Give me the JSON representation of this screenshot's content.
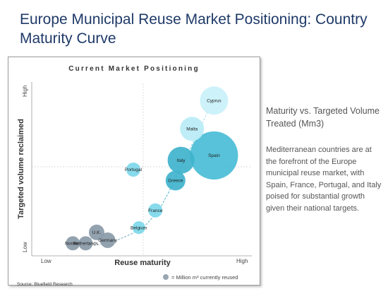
{
  "page": {
    "title": "Europe Municipal Reuse Market Positioning: Country Maturity Curve",
    "source": "Source: Bluefield Research"
  },
  "side_panel": {
    "heading": "Maturity vs. Targeted Volume Treated (Mm3)",
    "body": "Mediterranean countries are at the forefront of the Europe municipal reuse market, with Spain, France, Portugal, and Italy poised for substantial growth given their national targets."
  },
  "chart_data": {
    "type": "scatter",
    "title": "Current Market Positioning",
    "xlabel": "Reuse maturity",
    "ylabel": "Targeted volume reclaimed",
    "x_ticks": [
      "Low",
      "High"
    ],
    "y_ticks": [
      "Low",
      "High"
    ],
    "xlim": [
      0,
      100
    ],
    "ylim": [
      0,
      100
    ],
    "grid": false,
    "legend_text": "= Million m³ currently reused",
    "points": [
      {
        "label": "Nordics",
        "x": 12,
        "y": 3,
        "size": 1.0,
        "color": "#8a9aa8"
      },
      {
        "label": "Netherlands",
        "x": 19,
        "y": 3,
        "size": 1.0,
        "color": "#8a9aa8"
      },
      {
        "label": "U.K.",
        "x": 25,
        "y": 10,
        "size": 1.1,
        "color": "#8a9aa8"
      },
      {
        "label": "Germany",
        "x": 31,
        "y": 5,
        "size": 1.1,
        "color": "#8a9aa8"
      },
      {
        "label": "Belgium",
        "x": 48,
        "y": 13,
        "size": 0.9,
        "color": "#7dd8ea"
      },
      {
        "label": "France",
        "x": 57,
        "y": 24,
        "size": 1.0,
        "color": "#7dd8ea"
      },
      {
        "label": "Portugal",
        "x": 45,
        "y": 50,
        "size": 1.0,
        "color": "#7dd8ea"
      },
      {
        "label": "Greece",
        "x": 68,
        "y": 43,
        "size": 1.4,
        "color": "#3fb3cc"
      },
      {
        "label": "Italy",
        "x": 71,
        "y": 56,
        "size": 1.9,
        "color": "#3fb3cc"
      },
      {
        "label": "Spain",
        "x": 89,
        "y": 59,
        "size": 3.4,
        "color": "#49bdd6"
      },
      {
        "label": "Malta",
        "x": 77,
        "y": 76,
        "size": 1.7,
        "color": "#b8ecf6"
      },
      {
        "label": "Cyprus",
        "x": 89,
        "y": 94,
        "size": 2.0,
        "color": "#c9f1f8"
      }
    ],
    "trend_curve": [
      [
        12,
        0
      ],
      [
        25,
        2
      ],
      [
        36,
        5
      ],
      [
        44,
        9
      ],
      [
        52,
        15
      ],
      [
        59,
        24
      ],
      [
        64,
        35
      ],
      [
        70,
        49
      ],
      [
        77,
        66
      ],
      [
        84,
        83
      ],
      [
        90,
        97
      ]
    ]
  }
}
